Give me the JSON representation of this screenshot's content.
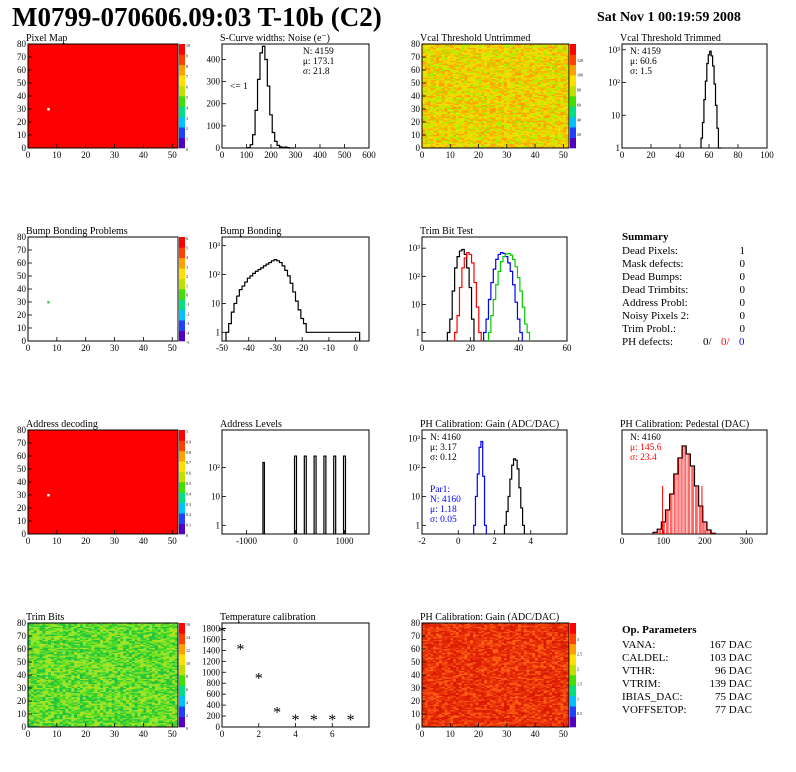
{
  "header": {
    "title": "M0799-070606.09:03 T-10b (C2)",
    "date": "Sat Nov  1 00:19:59 2008"
  },
  "chart_data": [
    {
      "id": "pixmap",
      "type": "heatmap",
      "title": "Pixel Map",
      "xlim": [
        0,
        52
      ],
      "ylim": [
        0,
        80
      ],
      "xticks": [
        0,
        10,
        20,
        30,
        40,
        50
      ],
      "yticks": [
        0,
        10,
        20,
        30,
        40,
        50,
        60,
        70,
        80
      ],
      "fill": "#ff0000",
      "dots": [
        [
          7,
          30
        ]
      ],
      "dot_color": "#ffffff",
      "palette": "rainbow",
      "palette_ticks": [
        "10",
        "9",
        "8",
        "7",
        "6",
        "5",
        "4",
        "3",
        "2",
        "1",
        "0"
      ]
    },
    {
      "id": "noise",
      "type": "histogram",
      "title": "S-Curve widths: Noise (e⁻)",
      "xlim": [
        0,
        600
      ],
      "ylim": [
        0,
        470
      ],
      "xticks": [
        0,
        100,
        200,
        300,
        400,
        500,
        600
      ],
      "yticks": [
        0,
        100,
        200,
        300,
        400
      ],
      "annotation": "<= 1",
      "stats": [
        "N: 4159",
        "μ: 173.1",
        "σ: 21.8"
      ],
      "series": [
        {
          "color": "#000000",
          "x": [
            110,
            120,
            130,
            140,
            150,
            160,
            170,
            180,
            190,
            200,
            210,
            220,
            230,
            240,
            250,
            260,
            270,
            280,
            290
          ],
          "values": [
            2,
            15,
            60,
            170,
            310,
            430,
            460,
            400,
            280,
            150,
            70,
            30,
            12,
            5,
            2,
            4,
            2,
            0,
            0
          ]
        }
      ]
    },
    {
      "id": "vcal-untrim",
      "type": "heatmap",
      "title": "Vcal Threshold Untrimmed",
      "xlim": [
        0,
        52
      ],
      "ylim": [
        0,
        80
      ],
      "xticks": [
        0,
        10,
        20,
        30,
        40,
        50
      ],
      "yticks": [
        0,
        10,
        20,
        30,
        40,
        50,
        60,
        70,
        80
      ],
      "colors": [
        "#ffb300",
        "#ffd400",
        "#f2e000",
        "#ccec00",
        "#a8f000",
        "#ffa000"
      ],
      "palette": "rainbow",
      "palette_ticks": [
        "",
        "120",
        "100",
        "80",
        "60",
        "40",
        "20",
        ""
      ]
    },
    {
      "id": "vcal-trim",
      "type": "histogram",
      "title": "Vcal Threshold Trimmed",
      "log": true,
      "xlim": [
        0,
        100
      ],
      "ylim": [
        1,
        1500
      ],
      "xticks": [
        0,
        20,
        40,
        60,
        80,
        100
      ],
      "yticks": [
        1,
        10,
        100,
        1000
      ],
      "stats": [
        "N: 4159",
        "μ: 60.6",
        "σ:  1.5"
      ],
      "series": [
        {
          "color": "#000000",
          "x": [
            55,
            56,
            57,
            58,
            59,
            60,
            61,
            62,
            63,
            64,
            65,
            66,
            67,
            68
          ],
          "values": [
            2,
            6,
            30,
            110,
            380,
            700,
            900,
            650,
            320,
            90,
            20,
            4,
            1,
            0
          ]
        }
      ]
    },
    {
      "id": "bump-map",
      "type": "heatmap",
      "title": "Bump Bonding Problems",
      "xlim": [
        0,
        52
      ],
      "ylim": [
        0,
        80
      ],
      "xticks": [
        0,
        10,
        20,
        30,
        40,
        50
      ],
      "yticks": [
        0,
        10,
        20,
        30,
        40,
        50,
        60,
        70,
        80
      ],
      "fill": "#ffffff",
      "dots": [
        [
          7,
          30
        ]
      ],
      "dot_color": "#40d040",
      "palette": "rainbow",
      "palette_ticks": [
        "6",
        "5",
        "4",
        "3",
        "2",
        "1",
        "0",
        "-1",
        "-2",
        "-3",
        "-4",
        "-5"
      ]
    },
    {
      "id": "bump",
      "type": "histogram",
      "title": "Bump Bonding",
      "log": true,
      "xlim": [
        -50,
        5
      ],
      "ylim": [
        0.5,
        2000
      ],
      "xticks": [
        -50,
        -40,
        -30,
        -20,
        -10,
        0
      ],
      "yticks": [
        1,
        10,
        100,
        1000
      ],
      "series": [
        {
          "color": "#000000",
          "x": [
            -48,
            -47,
            -46,
            -45,
            -44,
            -43,
            -42,
            -41,
            -40,
            -39,
            -38,
            -37,
            -36,
            -35,
            -34,
            -33,
            -32,
            -31,
            -30,
            -29,
            -28,
            -27,
            -26,
            -25,
            -24,
            -23,
            -22,
            -21,
            -20,
            -19,
            -18,
            -17,
            1
          ],
          "values": [
            1,
            2,
            5,
            10,
            18,
            30,
            40,
            55,
            75,
            90,
            110,
            130,
            150,
            170,
            200,
            230,
            260,
            300,
            330,
            300,
            260,
            200,
            140,
            90,
            50,
            25,
            12,
            6,
            3,
            2,
            1,
            1,
            1
          ]
        }
      ]
    },
    {
      "id": "trimbit",
      "type": "histogram",
      "title": "Trim Bit Test",
      "log": true,
      "xlim": [
        0,
        60
      ],
      "ylim": [
        0.5,
        2500
      ],
      "xticks": [
        0,
        20,
        40,
        60
      ],
      "yticks": [
        1,
        10,
        100,
        1000
      ],
      "series": [
        {
          "color": "#000000",
          "x": [
            11,
            12,
            13,
            14,
            15,
            16,
            17,
            18,
            19,
            20,
            21
          ],
          "values": [
            1,
            3,
            30,
            200,
            500,
            800,
            900,
            600,
            200,
            40,
            3
          ]
        },
        {
          "color": "#ff0000",
          "x": [
            14,
            15,
            16,
            17,
            18,
            19,
            20,
            21,
            22,
            23,
            24
          ],
          "values": [
            1,
            4,
            40,
            200,
            450,
            700,
            600,
            300,
            60,
            8,
            1
          ]
        },
        {
          "color": "#0000ff",
          "x": [
            26,
            27,
            28,
            29,
            30,
            31,
            32,
            33,
            34,
            35,
            36,
            37,
            38,
            39,
            40,
            41
          ],
          "values": [
            1,
            3,
            15,
            60,
            180,
            400,
            600,
            700,
            650,
            500,
            300,
            150,
            50,
            12,
            3,
            1
          ]
        },
        {
          "color": "#00cc00",
          "x": [
            28,
            29,
            30,
            31,
            32,
            33,
            34,
            35,
            36,
            37,
            38,
            39,
            40,
            41,
            42,
            43,
            44
          ],
          "values": [
            1,
            4,
            15,
            50,
            150,
            330,
            500,
            620,
            650,
            560,
            400,
            220,
            90,
            30,
            8,
            2,
            1
          ]
        }
      ]
    },
    {
      "id": "addr-map",
      "type": "heatmap",
      "title": "Address decoding",
      "xlim": [
        0,
        52
      ],
      "ylim": [
        0,
        80
      ],
      "xticks": [
        0,
        10,
        20,
        30,
        40,
        50
      ],
      "yticks": [
        0,
        10,
        20,
        30,
        40,
        50,
        60,
        70,
        80
      ],
      "fill": "#ff0000",
      "dots": [
        [
          7,
          30
        ]
      ],
      "dot_color": "#ffffff",
      "palette": "rainbow",
      "palette_ticks": [
        "1",
        "0.9",
        "0.8",
        "0.7",
        "0.6",
        "0.5",
        "0.4",
        "0.3",
        "0.2",
        "0.1",
        "0"
      ]
    },
    {
      "id": "addr-levels",
      "type": "histogram",
      "title": "Address Levels",
      "log": true,
      "xlim": [
        -1500,
        1500
      ],
      "ylim": [
        0.5,
        2000
      ],
      "xticks": [
        -1000,
        0,
        1000
      ],
      "yticks": [
        1,
        10,
        100
      ],
      "spikes": [
        {
          "center": -650,
          "w": 30,
          "h": 150
        },
        {
          "center": 0,
          "w": 40,
          "h": 250
        },
        {
          "center": 200,
          "w": 40,
          "h": 250
        },
        {
          "center": 400,
          "w": 40,
          "h": 250
        },
        {
          "center": 600,
          "w": 40,
          "h": 250
        },
        {
          "center": 800,
          "w": 40,
          "h": 250
        },
        {
          "center": 1000,
          "w": 40,
          "h": 250
        }
      ]
    },
    {
      "id": "gain",
      "type": "histogram",
      "title": "PH Calibration: Gain (ADC/DAC)",
      "log": true,
      "xlim": [
        -2,
        6
      ],
      "ylim": [
        0.5,
        2000
      ],
      "xticks": [
        -2,
        0,
        2,
        4
      ],
      "yticks": [
        1,
        10,
        100,
        1000
      ],
      "stats": [
        "N: 4160",
        "μ: 3.17",
        "σ: 0.12"
      ],
      "stats2": [
        "Par1:",
        "N: 4160",
        "μ: 1.18",
        "σ: 0.05"
      ],
      "series": [
        {
          "color": "#000000",
          "x": [
            2.6,
            2.7,
            2.8,
            2.9,
            3.0,
            3.1,
            3.2,
            3.3,
            3.4,
            3.5,
            3.6
          ],
          "values": [
            1,
            3,
            10,
            40,
            120,
            200,
            180,
            90,
            20,
            4,
            1
          ]
        },
        {
          "color": "#0000ff",
          "x": [
            0.9,
            1.0,
            1.1,
            1.2,
            1.3,
            1.4,
            1.5
          ],
          "values": [
            1,
            10,
            60,
            500,
            800,
            50,
            1
          ]
        }
      ]
    },
    {
      "id": "pedestal",
      "type": "histogram",
      "title": "PH Calibration: Pedestal (DAC)",
      "xlim": [
        0,
        350
      ],
      "ylim": [
        0,
        130
      ],
      "xticks": [
        0,
        100,
        200,
        300
      ],
      "stats": [
        "N: 4160"
      ],
      "stats_red": [
        "μ: 145.6",
        "σ: 23.4"
      ],
      "series": [
        {
          "color": "#000000",
          "x": [
            80,
            90,
            100,
            110,
            120,
            130,
            140,
            150,
            160,
            170,
            180,
            190,
            200,
            210,
            220
          ],
          "values": [
            2,
            6,
            15,
            30,
            50,
            75,
            95,
            110,
            100,
            85,
            60,
            35,
            15,
            5,
            1
          ]
        }
      ]
    },
    {
      "id": "trimbits",
      "type": "heatmap",
      "title": "Trim Bits",
      "xlim": [
        0,
        52
      ],
      "ylim": [
        0,
        80
      ],
      "xticks": [
        0,
        10,
        20,
        30,
        40,
        50
      ],
      "yticks": [
        0,
        10,
        20,
        30,
        40,
        50,
        60,
        70,
        80
      ],
      "colors": [
        "#30d030",
        "#60e020",
        "#90e830",
        "#20c040",
        "#b0e020"
      ],
      "palette": "rainbow",
      "palette_ticks": [
        "16",
        "14",
        "12",
        "10",
        "8",
        "6",
        "4",
        "2",
        "0"
      ]
    },
    {
      "id": "temp",
      "type": "scatter",
      "title": "Temperature calibration",
      "xlim": [
        0,
        8
      ],
      "ylim": [
        0,
        1900
      ],
      "xticks": [
        0,
        2,
        4,
        6
      ],
      "yticks": [
        0,
        200,
        400,
        600,
        800,
        1000,
        1200,
        1400,
        1600,
        1800
      ],
      "x": [
        0,
        1,
        2,
        3,
        4,
        5,
        6,
        7
      ],
      "values": [
        1750,
        1430,
        900,
        280,
        150,
        150,
        150,
        150
      ]
    },
    {
      "id": "gain-map",
      "type": "heatmap",
      "title": "PH Calibration: Gain (ADC/DAC)",
      "xlim": [
        0,
        52
      ],
      "ylim": [
        0,
        80
      ],
      "xticks": [
        0,
        10,
        20,
        30,
        40,
        50
      ],
      "yticks": [
        0,
        10,
        20,
        30,
        40,
        50,
        60,
        70,
        80
      ],
      "colors": [
        "#e02000",
        "#f04010",
        "#d81800",
        "#ff6010",
        "#e83008"
      ],
      "palette": "rainbow",
      "palette_ticks": [
        "",
        "3",
        "2.5",
        "2",
        "1.5",
        "1",
        "0.5",
        ""
      ]
    }
  ],
  "summary": {
    "title": "Summary",
    "rows": [
      {
        "label": "Dead Pixels:",
        "value": "1"
      },
      {
        "label": "Mask defects:",
        "value": "0"
      },
      {
        "label": "Dead Bumps:",
        "value": "0"
      },
      {
        "label": "Dead Trimbits:",
        "value": "0"
      },
      {
        "label": "Address Probl:",
        "value": "0"
      },
      {
        "label": "Noisy Pixels 2:",
        "value": "0"
      },
      {
        "label": "Trim Probl.:",
        "value": "0"
      }
    ],
    "ph_label": "PH defects:",
    "ph_values": [
      {
        "v": "0/",
        "color": "#000000"
      },
      {
        "v": "0/",
        "color": "#ff0000"
      },
      {
        "v": "0",
        "color": "#0000ff"
      }
    ]
  },
  "op_params": {
    "title": "Op. Parameters",
    "rows": [
      {
        "label": "VANA:",
        "value": "167 DAC"
      },
      {
        "label": "CALDEL:",
        "value": "103 DAC"
      },
      {
        "label": "VTHR:",
        "value": "96 DAC"
      },
      {
        "label": "VTRIM:",
        "value": "139 DAC"
      },
      {
        "label": "IBIAS_DAC:",
        "value": "75 DAC"
      },
      {
        "label": "VOFFSETOP:",
        "value": "77 DAC"
      }
    ]
  }
}
